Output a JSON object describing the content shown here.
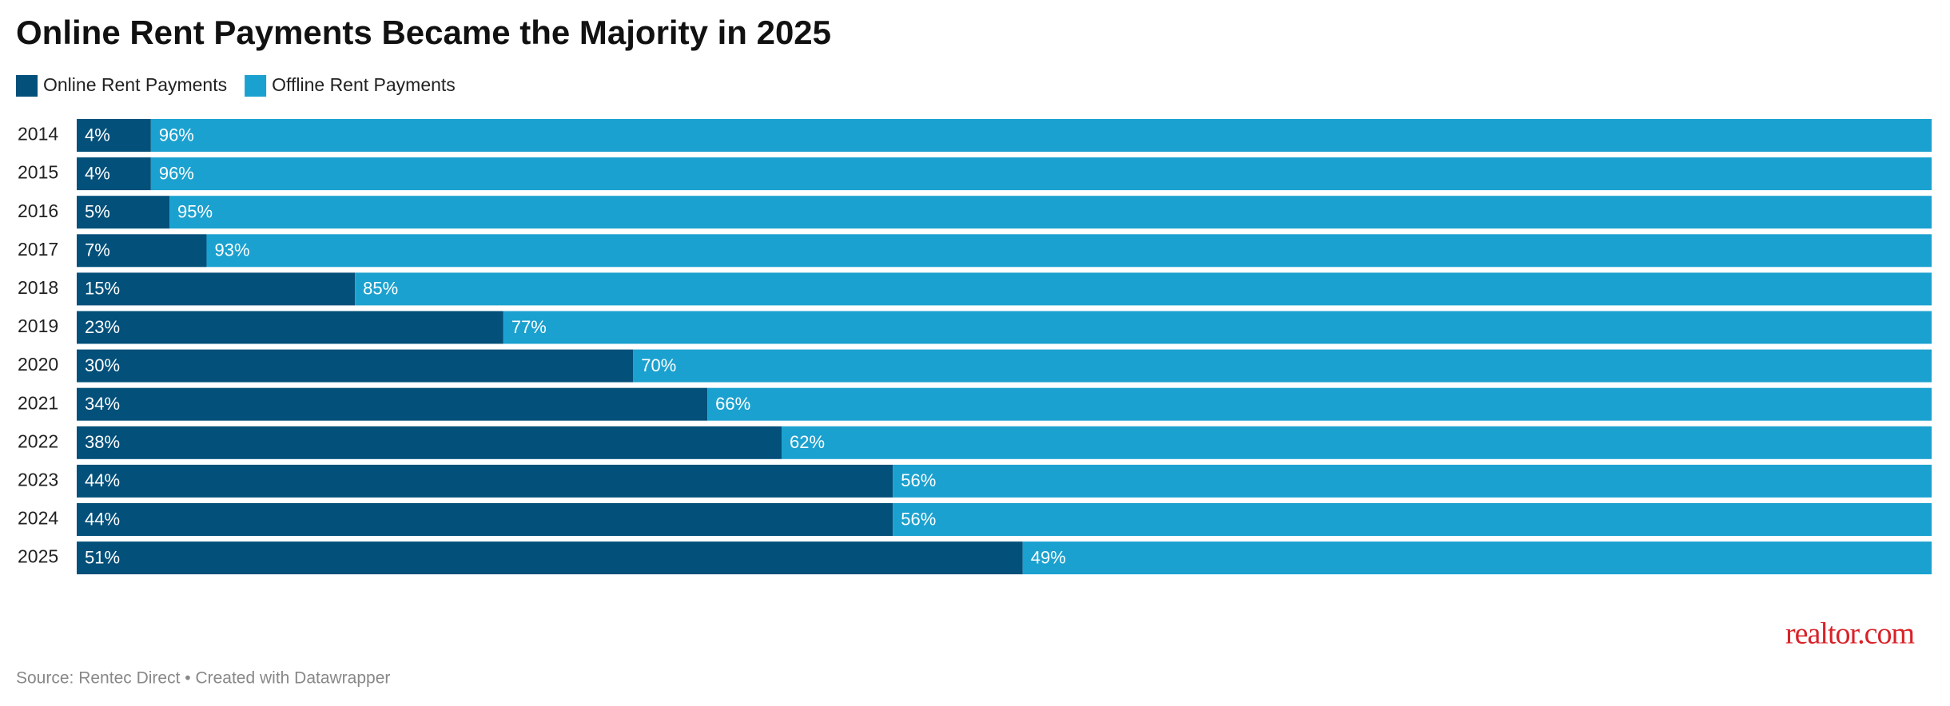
{
  "chart_data": {
    "type": "stacked-bar",
    "orientation": "horizontal",
    "title": "Online Rent Payments Became the Majority in 2025",
    "categories": [
      "2014",
      "2015",
      "2016",
      "2017",
      "2018",
      "2019",
      "2020",
      "2021",
      "2022",
      "2023",
      "2024",
      "2025"
    ],
    "series": [
      {
        "name": "Online Rent Payments",
        "color": "#03507a",
        "values": [
          4,
          4,
          5,
          7,
          15,
          23,
          30,
          34,
          38,
          44,
          44,
          51
        ],
        "value_labels": [
          "4%",
          "4%",
          "5%",
          "7%",
          "15%",
          "23%",
          "30%",
          "34%",
          "38%",
          "44%",
          "44%",
          "51%"
        ]
      },
      {
        "name": "Offline Rent Payments",
        "color": "#1ba1cf",
        "values": [
          96,
          96,
          95,
          93,
          85,
          77,
          70,
          66,
          62,
          56,
          56,
          49
        ],
        "value_labels": [
          "96%",
          "96%",
          "95%",
          "93%",
          "85%",
          "77%",
          "70%",
          "66%",
          "62%",
          "56%",
          "56%",
          "49%"
        ]
      }
    ],
    "xlim": [
      0,
      100
    ],
    "source": "Source: Rentec Direct • Created with Datawrapper",
    "logo": "realtor.com"
  }
}
